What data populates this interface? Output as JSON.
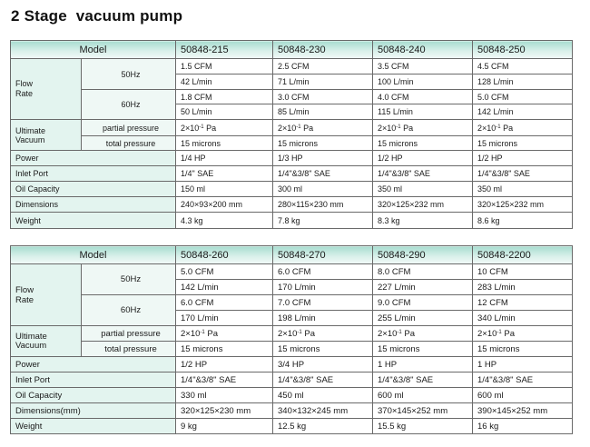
{
  "page": {
    "title": "2 Stage  vacuum pump"
  },
  "table1": {
    "model_label": "Model",
    "models": [
      "50848-215",
      "50848-230",
      "50848-240",
      "50848-250"
    ],
    "flow_rate_label": "Flow\nRate",
    "hz50_label": "50Hz",
    "hz60_label": "60Hz",
    "flow50_cfm": [
      "1.5 CFM",
      "2.5 CFM",
      "3.5 CFM",
      "4.5 CFM"
    ],
    "flow50_lmin": [
      "42 L/min",
      "71 L/min",
      "100 L/min",
      "128 L/min"
    ],
    "flow60_cfm": [
      "1.8 CFM",
      "3.0 CFM",
      "4.0 CFM",
      "5.0 CFM"
    ],
    "flow60_lmin": [
      "50 L/min",
      "85 L/min",
      "115 L/min",
      "142 L/min"
    ],
    "ultimate_vacuum_label": "Ultimate\nVacuum",
    "partial_pressure_label": "partial pressure",
    "total_pressure_label": "total pressure",
    "partial_pressure": [
      "2×10-1 Pa",
      "2×10-1 Pa",
      "2×10-1 Pa",
      "2×10-1 Pa"
    ],
    "total_pressure": [
      "15 microns",
      "15 microns",
      "15 microns",
      "15 microns"
    ],
    "power_label": "Power",
    "power": [
      "1/4 HP",
      "1/3 HP",
      "1/2 HP",
      "1/2 HP"
    ],
    "inlet_label": "Inlet Port",
    "inlet": [
      "1/4\" SAE",
      "1/4\"&3/8\" SAE",
      "1/4\"&3/8\" SAE",
      "1/4\"&3/8\" SAE"
    ],
    "oil_label": "Oil Capacity",
    "oil": [
      "150 ml",
      "300 ml",
      "350 ml",
      "350 ml"
    ],
    "dimensions_label": "Dimensions",
    "dimensions": [
      "240×93×200 mm",
      "280×115×230 mm",
      "320×125×232 mm",
      "320×125×232 mm"
    ],
    "weight_label": "Weight",
    "weight": [
      "4.3 kg",
      "7.8 kg",
      "8.3 kg",
      "8.6 kg"
    ]
  },
  "table2": {
    "model_label": "Model",
    "models": [
      "50848-260",
      "50848-270",
      "50848-290",
      "50848-2200"
    ],
    "flow_rate_label": "Flow\nRate",
    "hz50_label": "50Hz",
    "hz60_label": "60Hz",
    "flow50_cfm": [
      "5.0 CFM",
      "6.0 CFM",
      "8.0 CFM",
      "10 CFM"
    ],
    "flow50_lmin": [
      "142 L/min",
      "170 L/min",
      "227 L/min",
      "283 L/min"
    ],
    "flow60_cfm": [
      "6.0 CFM",
      "7.0 CFM",
      "9.0 CFM",
      "12 CFM"
    ],
    "flow60_lmin": [
      "170 L/min",
      "198 L/min",
      "255 L/min",
      "340 L/min"
    ],
    "ultimate_vacuum_label": "Ultimate\nVacuum",
    "partial_pressure_label": "partial pressure",
    "total_pressure_label": "total pressure",
    "partial_pressure": [
      "2×10-1 Pa",
      "2×10-1 Pa",
      "2×10-1 Pa",
      "2×10-1 Pa"
    ],
    "total_pressure": [
      "15 microns",
      "15 microns",
      "15 microns",
      "15 microns"
    ],
    "power_label": "Power",
    "power": [
      "1/2 HP",
      "3/4 HP",
      "1 HP",
      "1 HP"
    ],
    "inlet_label": "Inlet Port",
    "inlet": [
      "1/4\"&3/8\" SAE",
      "1/4\"&3/8\" SAE",
      "1/4\"&3/8\" SAE",
      "1/4\"&3/8\" SAE"
    ],
    "oil_label": "Oil Capacity",
    "oil": [
      "330 ml",
      "450 ml",
      "600 ml",
      "600 ml"
    ],
    "dimensions_label": "Dimensions(mm)",
    "dimensions": [
      "320×125×230 mm",
      "340×132×245 mm",
      "370×145×252 mm",
      "390×145×252 mm"
    ],
    "weight_label": "Weight",
    "weight": [
      "9 kg",
      "12.5 kg",
      "15.5 kg",
      "16 kg"
    ]
  },
  "colors": {
    "header_gradient_top": "#a8ddd0",
    "label_bg": "#e3f4ef",
    "border": "#6a6a6a"
  }
}
